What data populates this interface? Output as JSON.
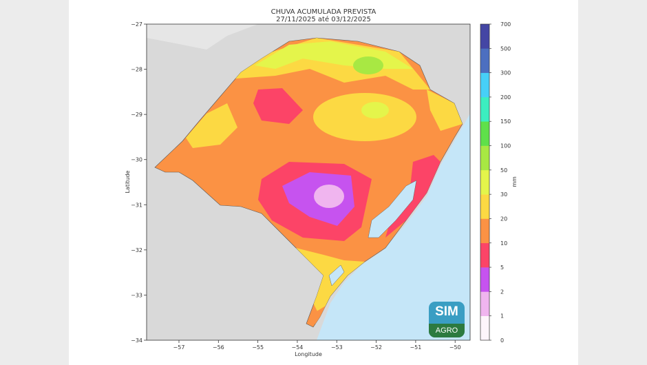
{
  "title": {
    "line1": "CHUVA ACUMULADA PREVISTA",
    "line2": "27/11/2025 até 03/12/2025"
  },
  "axes": {
    "xlabel": "Longitude",
    "ylabel": "Latitude",
    "xlim": [
      -57.82,
      -49.62
    ],
    "ylim": [
      -34,
      -27
    ],
    "xticks": [
      "−57",
      "−56",
      "−55",
      "−54",
      "−53",
      "−52",
      "−51",
      "−50"
    ],
    "xtick_values": [
      -57,
      -56,
      -55,
      -54,
      -53,
      -52,
      -51,
      -50
    ],
    "yticks": [
      "−27",
      "−28",
      "−29",
      "−30",
      "−31",
      "−32",
      "−33",
      "−34"
    ],
    "ytick_values": [
      -27,
      -28,
      -29,
      -30,
      -31,
      -32,
      -33,
      -34
    ]
  },
  "colorbar": {
    "label": "mm",
    "ticks": [
      "0",
      "1",
      "2",
      "5",
      "10",
      "20",
      "30",
      "50",
      "100",
      "150",
      "200",
      "300",
      "500",
      "700"
    ],
    "colors": [
      "#fdf5fb",
      "#f0b5ef",
      "#c653ef",
      "#fc4467",
      "#fb9244",
      "#fcd943",
      "#e4f54b",
      "#a8e843",
      "#5fe04a",
      "#3ceec0",
      "#47d0f8",
      "#4c6fc0",
      "#4446a4"
    ]
  },
  "logo": {
    "top": "SIM",
    "bottom": "AGRO"
  },
  "colors": {
    "land": "#d9d9d9",
    "ocean": "#c5e6f8"
  }
}
